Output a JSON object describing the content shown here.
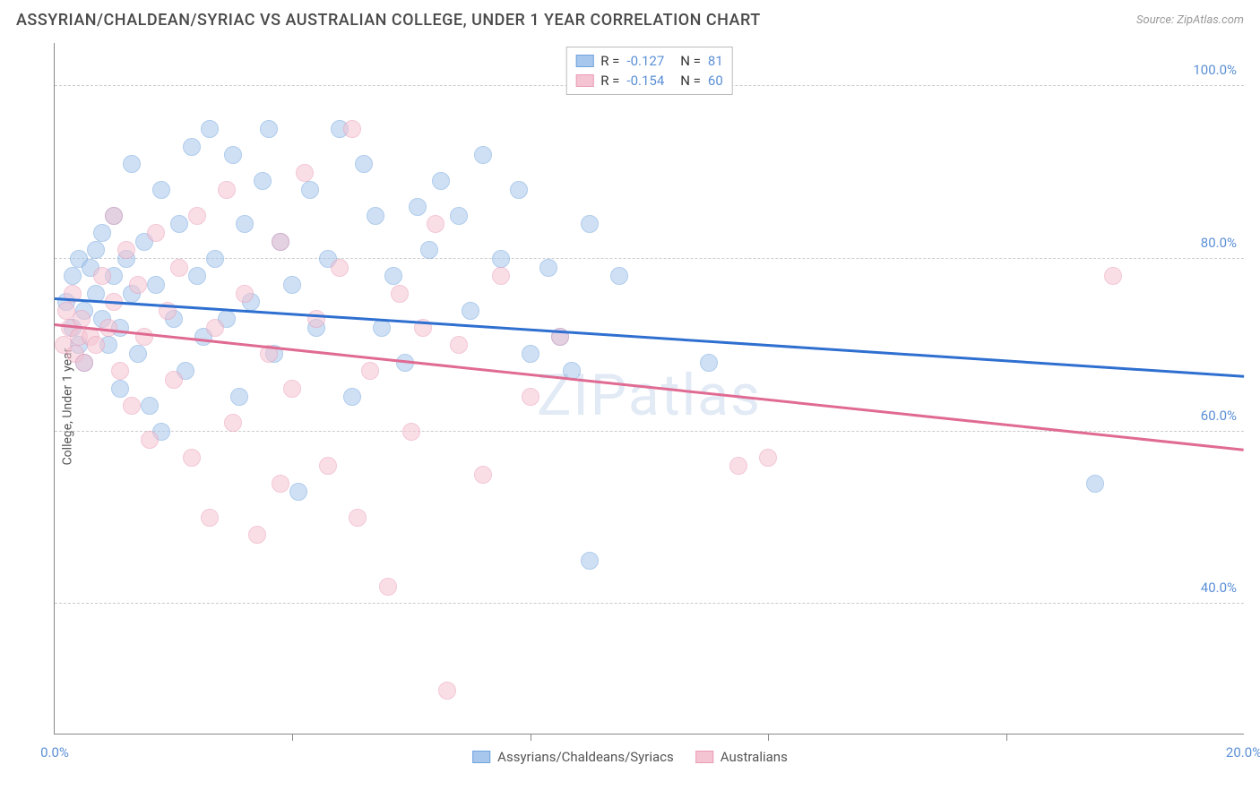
{
  "title": "ASSYRIAN/CHALDEAN/SYRIAC VS AUSTRALIAN COLLEGE, UNDER 1 YEAR CORRELATION CHART",
  "source": "Source: ZipAtlas.com",
  "ylabel": "College, Under 1 year",
  "watermark": "ZIPatlas",
  "chart": {
    "type": "scatter",
    "xlim": [
      0,
      20
    ],
    "ylim": [
      25,
      105
    ],
    "xticks": [
      0,
      20
    ],
    "xtick_labels": [
      "0.0%",
      "20.0%"
    ],
    "xtick_minor": [
      4,
      8,
      12,
      16
    ],
    "yticks": [
      40,
      60,
      80,
      100
    ],
    "ytick_labels": [
      "40.0%",
      "60.0%",
      "80.0%",
      "100.0%"
    ],
    "grid_color": "#cccccc",
    "background_color": "#ffffff",
    "axis_color": "#888888",
    "point_radius": 10,
    "point_opacity": 0.55,
    "series": [
      {
        "name": "Assyrians/Chaldeans/Syriacs",
        "color_fill": "#a8c7ec",
        "color_stroke": "#6fa3dd",
        "R": "-0.127",
        "N": "81",
        "trend": {
          "x1": 0,
          "y1": 75.5,
          "x2": 20,
          "y2": 66.5,
          "color": "#2e6fd0"
        },
        "points": [
          [
            0.2,
            75
          ],
          [
            0.3,
            72
          ],
          [
            0.3,
            78
          ],
          [
            0.4,
            70
          ],
          [
            0.4,
            80
          ],
          [
            0.5,
            74
          ],
          [
            0.5,
            68
          ],
          [
            0.6,
            79
          ],
          [
            0.7,
            81
          ],
          [
            0.7,
            76
          ],
          [
            0.8,
            73
          ],
          [
            0.8,
            83
          ],
          [
            0.9,
            70
          ],
          [
            1.0,
            78
          ],
          [
            1.0,
            85
          ],
          [
            1.1,
            72
          ],
          [
            1.1,
            65
          ],
          [
            1.2,
            80
          ],
          [
            1.3,
            91
          ],
          [
            1.3,
            76
          ],
          [
            1.4,
            69
          ],
          [
            1.5,
            82
          ],
          [
            1.6,
            63
          ],
          [
            1.7,
            77
          ],
          [
            1.8,
            60
          ],
          [
            1.8,
            88
          ],
          [
            2.0,
            73
          ],
          [
            2.1,
            84
          ],
          [
            2.2,
            67
          ],
          [
            2.3,
            93
          ],
          [
            2.4,
            78
          ],
          [
            2.5,
            71
          ],
          [
            2.6,
            95
          ],
          [
            2.7,
            80
          ],
          [
            2.9,
            73
          ],
          [
            3.0,
            92
          ],
          [
            3.1,
            64
          ],
          [
            3.2,
            84
          ],
          [
            3.3,
            75
          ],
          [
            3.5,
            89
          ],
          [
            3.6,
            95
          ],
          [
            3.7,
            69
          ],
          [
            3.8,
            82
          ],
          [
            4.0,
            77
          ],
          [
            4.1,
            53
          ],
          [
            4.3,
            88
          ],
          [
            4.4,
            72
          ],
          [
            4.6,
            80
          ],
          [
            4.8,
            95
          ],
          [
            5.0,
            64
          ],
          [
            5.2,
            91
          ],
          [
            5.4,
            85
          ],
          [
            5.5,
            72
          ],
          [
            5.7,
            78
          ],
          [
            5.9,
            68
          ],
          [
            6.1,
            86
          ],
          [
            6.3,
            81
          ],
          [
            6.5,
            89
          ],
          [
            6.8,
            85
          ],
          [
            7.0,
            74
          ],
          [
            7.2,
            92
          ],
          [
            7.5,
            80
          ],
          [
            7.8,
            88
          ],
          [
            8.0,
            69
          ],
          [
            8.3,
            79
          ],
          [
            8.5,
            71
          ],
          [
            8.7,
            67
          ],
          [
            9.0,
            84
          ],
          [
            9.0,
            45
          ],
          [
            9.5,
            78
          ],
          [
            11.0,
            68
          ],
          [
            17.5,
            54
          ]
        ]
      },
      {
        "name": "Australians",
        "color_fill": "#f5c4d2",
        "color_stroke": "#ea9bb5",
        "R": "-0.154",
        "N": "60",
        "trend": {
          "x1": 0,
          "y1": 72.5,
          "x2": 20,
          "y2": 58,
          "color": "#e06b92"
        },
        "points": [
          [
            0.15,
            70
          ],
          [
            0.2,
            74
          ],
          [
            0.25,
            72
          ],
          [
            0.3,
            76
          ],
          [
            0.35,
            69
          ],
          [
            0.4,
            71
          ],
          [
            0.45,
            73
          ],
          [
            0.5,
            68
          ],
          [
            0.6,
            71
          ],
          [
            0.7,
            70
          ],
          [
            0.8,
            78
          ],
          [
            0.9,
            72
          ],
          [
            1.0,
            85
          ],
          [
            1.0,
            75
          ],
          [
            1.1,
            67
          ],
          [
            1.2,
            81
          ],
          [
            1.3,
            63
          ],
          [
            1.4,
            77
          ],
          [
            1.5,
            71
          ],
          [
            1.6,
            59
          ],
          [
            1.7,
            83
          ],
          [
            1.9,
            74
          ],
          [
            2.0,
            66
          ],
          [
            2.1,
            79
          ],
          [
            2.3,
            57
          ],
          [
            2.4,
            85
          ],
          [
            2.6,
            50
          ],
          [
            2.7,
            72
          ],
          [
            2.9,
            88
          ],
          [
            3.0,
            61
          ],
          [
            3.2,
            76
          ],
          [
            3.4,
            48
          ],
          [
            3.6,
            69
          ],
          [
            3.8,
            54
          ],
          [
            3.8,
            82
          ],
          [
            4.0,
            65
          ],
          [
            4.2,
            90
          ],
          [
            4.4,
            73
          ],
          [
            4.6,
            56
          ],
          [
            4.8,
            79
          ],
          [
            5.0,
            95
          ],
          [
            5.1,
            50
          ],
          [
            5.3,
            67
          ],
          [
            5.6,
            42
          ],
          [
            5.8,
            76
          ],
          [
            6.0,
            60
          ],
          [
            6.2,
            72
          ],
          [
            6.4,
            84
          ],
          [
            6.6,
            30
          ],
          [
            6.8,
            70
          ],
          [
            7.2,
            55
          ],
          [
            7.5,
            78
          ],
          [
            8.0,
            64
          ],
          [
            8.5,
            71
          ],
          [
            11.5,
            56
          ],
          [
            12.0,
            57
          ],
          [
            17.8,
            78
          ]
        ]
      }
    ]
  },
  "legend_bottom": [
    {
      "label": "Assyrians/Chaldeans/Syriacs",
      "fill": "#a8c7ec",
      "stroke": "#6fa3dd"
    },
    {
      "label": "Australians",
      "fill": "#f5c4d2",
      "stroke": "#ea9bb5"
    }
  ]
}
